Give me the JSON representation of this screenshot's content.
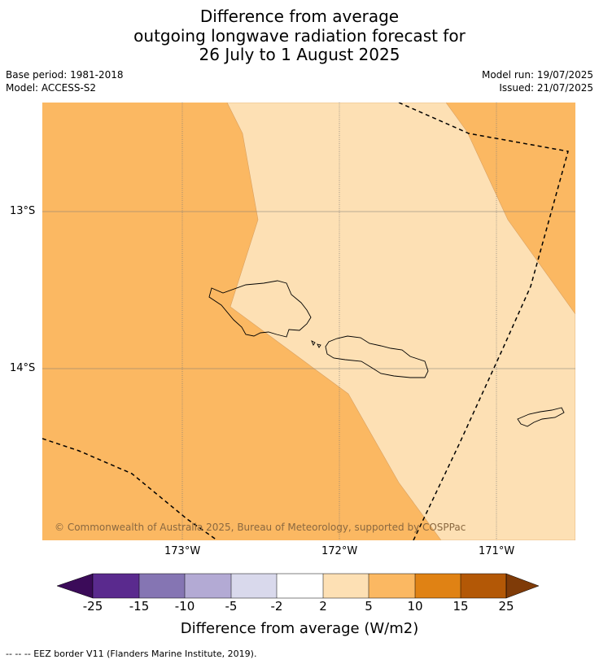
{
  "title": {
    "line1": "Difference from average",
    "line2": "outgoing longwave radiation forecast for",
    "line3": "26 July to 1 August 2025"
  },
  "meta": {
    "base_period": "Base period: 1981-2018",
    "model": "Model: ACCESS-S2",
    "model_run": "Model run: 19/07/2025",
    "issued": "Issued: 21/07/2025"
  },
  "map": {
    "lat_labels": [
      "13°S",
      "14°S"
    ],
    "lon_labels": [
      "173°W",
      "172°W",
      "171°W"
    ],
    "copyright": "© Commonwealth of Australia 2025, Bureau of Meteorology, supported by COSPPac",
    "colors": {
      "class_5_10": "#fbb862",
      "class_2_5": "#fde0b4"
    }
  },
  "colorbar": {
    "title": "Difference from average (W/m2)",
    "labels": [
      "-25",
      "-15",
      "-10",
      "-5",
      "-2",
      "2",
      "5",
      "10",
      "15",
      "25"
    ],
    "colors": [
      "#5a2a8e",
      "#8575b3",
      "#b3aad4",
      "#d9d9ec",
      "#ffffff",
      "#fde0b4",
      "#fbb862",
      "#e08214",
      "#b35806"
    ],
    "under_color": "#3b0b59",
    "over_color": "#7f3b08"
  },
  "footer": {
    "legend": "--  --  -- EEZ border V11 (Flanders Marine Institute, 2019)."
  }
}
